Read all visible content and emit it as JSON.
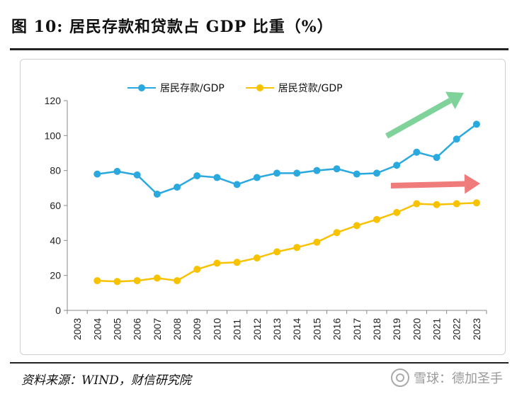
{
  "title": "图 10:  居民存款和贷款占 GDP 比重（%）",
  "source": "资料来源：WIND，财信研究院",
  "watermark": "雪球：德加圣手",
  "colors": {
    "deposit": "#2aa9df",
    "loan": "#f7c200",
    "green_arrow": "#7fd39a",
    "red_arrow": "#ef7b7b"
  },
  "chart_data": {
    "type": "line",
    "title": "",
    "xlabel": "",
    "ylabel": "",
    "ylim": [
      0,
      120
    ],
    "yticks": [
      0,
      20,
      40,
      60,
      80,
      100,
      120
    ],
    "categories": [
      "2003",
      "2004",
      "2005",
      "2006",
      "2007",
      "2008",
      "2009",
      "2010",
      "2011",
      "2012",
      "2013",
      "2014",
      "2015",
      "2016",
      "2017",
      "2018",
      "2019",
      "2020",
      "2021",
      "2022",
      "2023"
    ],
    "legend_position": "top",
    "grid": false,
    "series": [
      {
        "name": "居民存款/GDP",
        "color_key": "deposit",
        "values": [
          null,
          78,
          79.5,
          77.5,
          66.5,
          70.5,
          77,
          76,
          72,
          76,
          78.5,
          78.5,
          80,
          81,
          78,
          78.5,
          83,
          90.5,
          87.5,
          98,
          106.5
        ]
      },
      {
        "name": "居民贷款/GDP",
        "color_key": "loan",
        "values": [
          null,
          17,
          16.5,
          17,
          18.5,
          17,
          23.5,
          27,
          27.5,
          30,
          33.5,
          36,
          39,
          44.5,
          48.5,
          52,
          56,
          61,
          60.5,
          61,
          61.5
        ]
      }
    ]
  }
}
